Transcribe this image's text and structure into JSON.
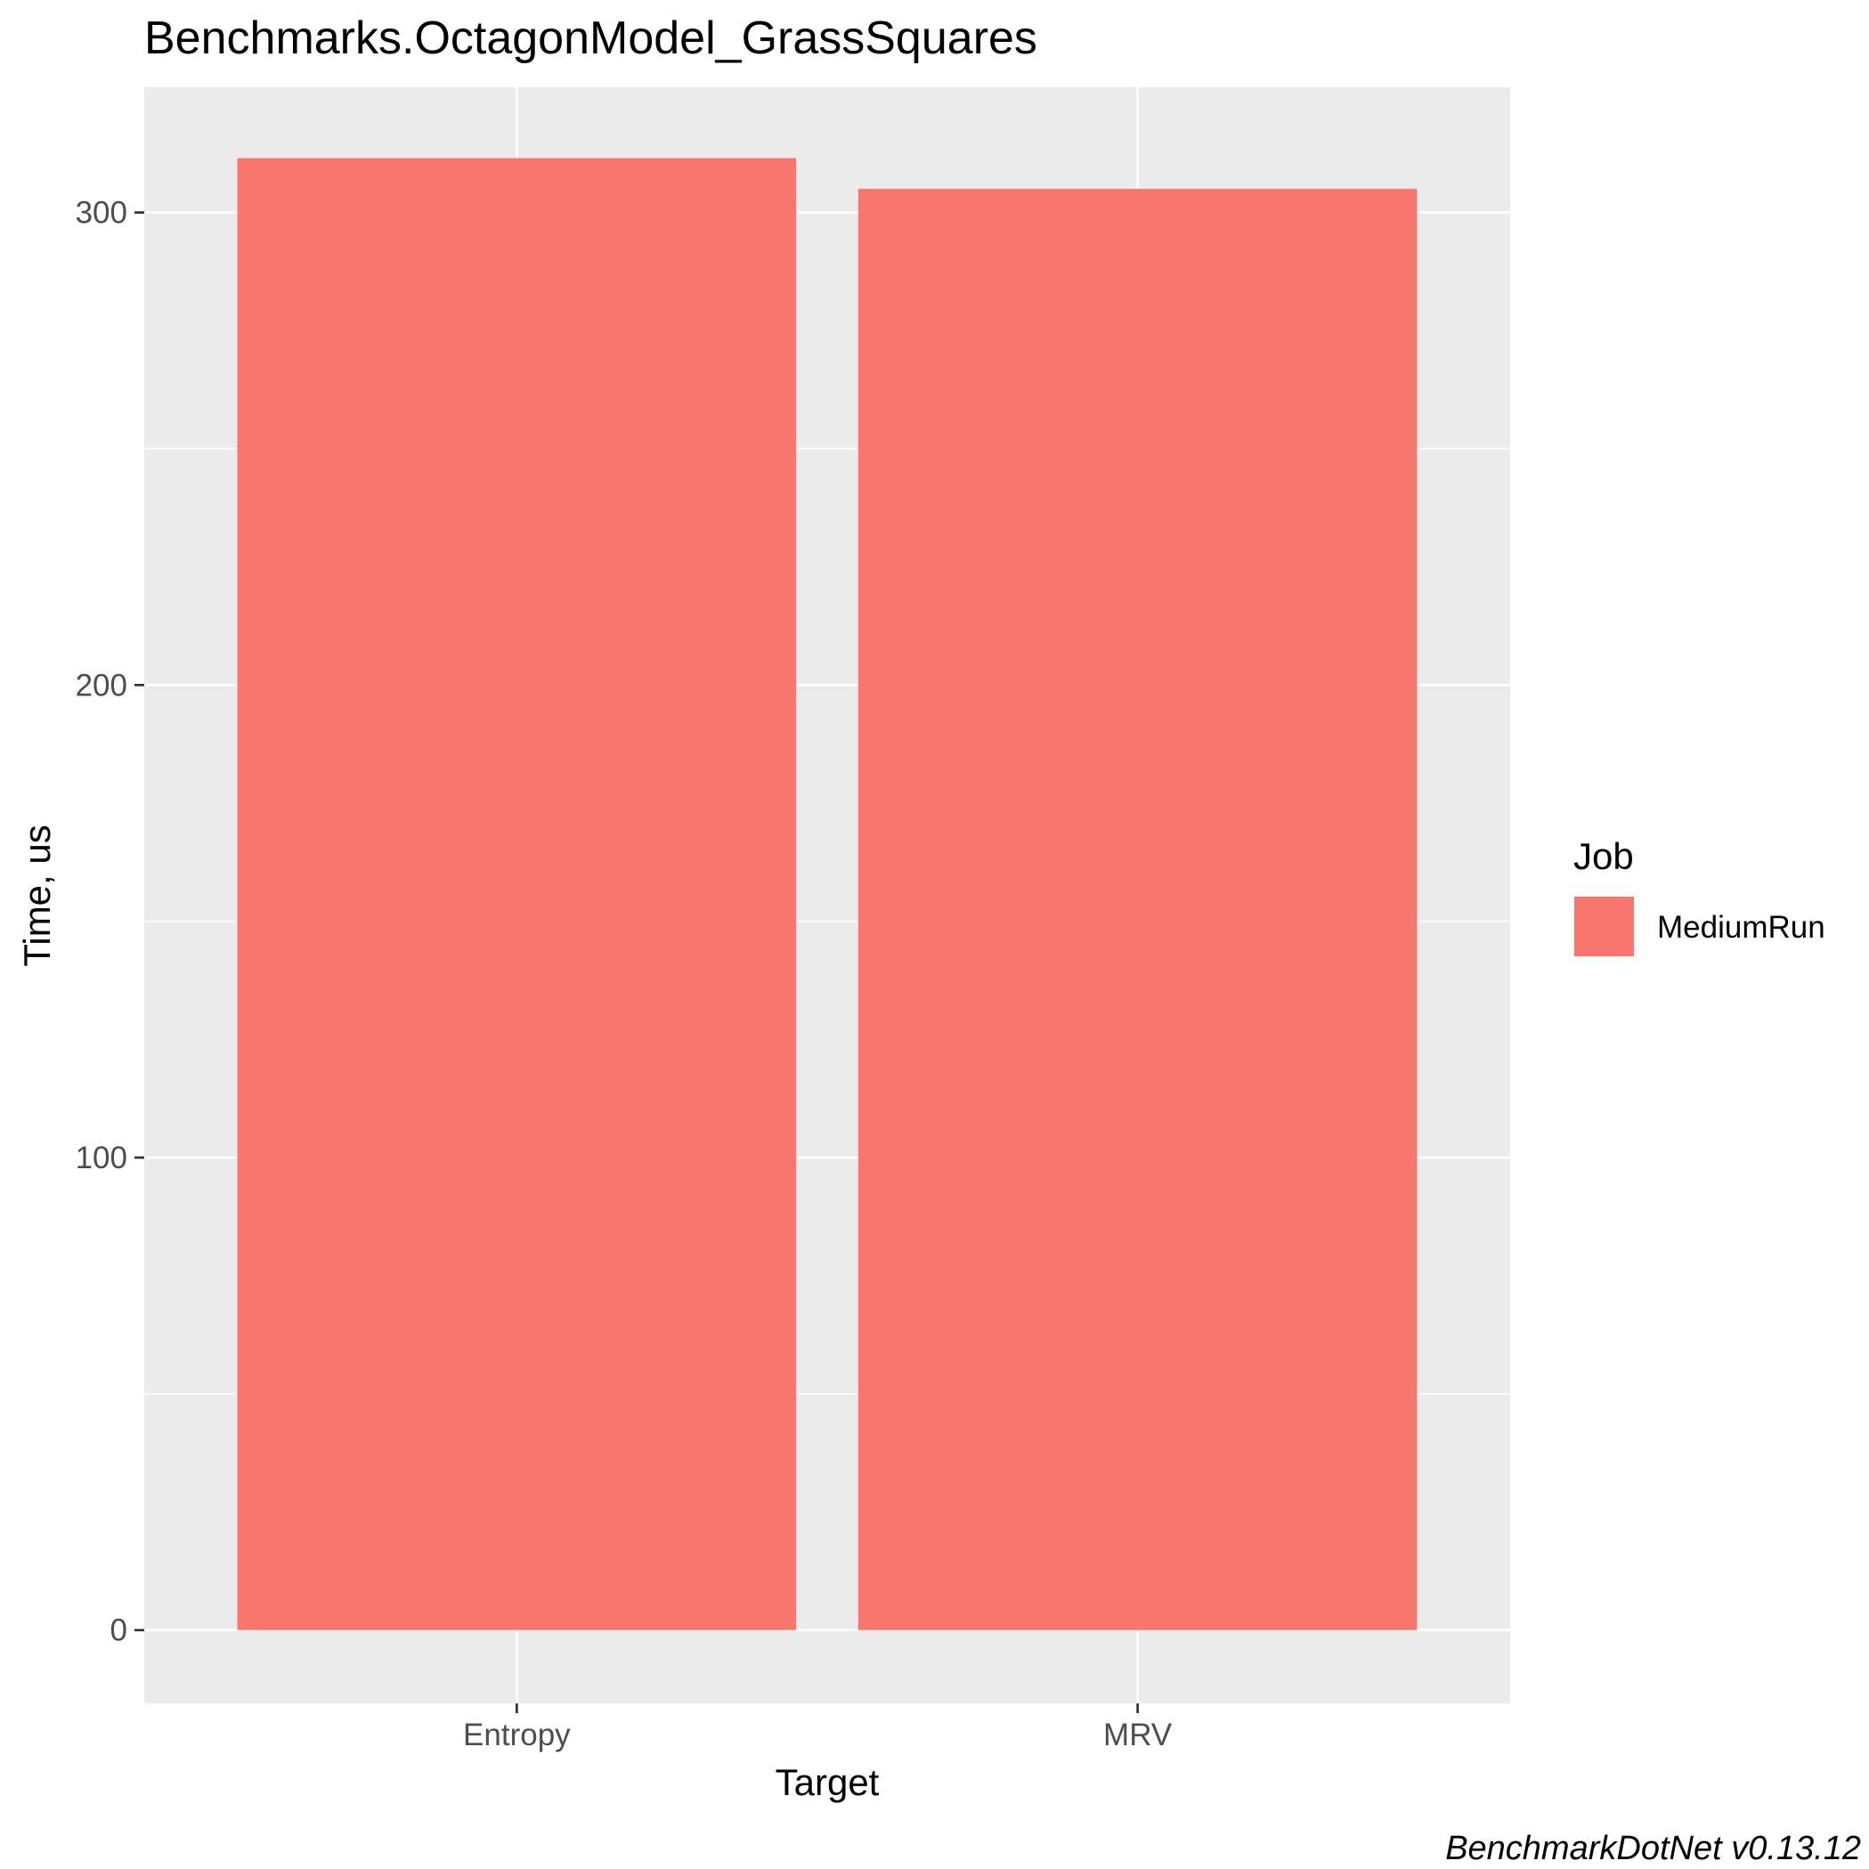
{
  "chart_data": {
    "type": "bar",
    "title": "Benchmarks.OctagonModel_GrassSquares",
    "xlabel": "Target",
    "ylabel": "Time, us",
    "categories": [
      "Entropy",
      "MRV"
    ],
    "series": [
      {
        "name": "MediumRun",
        "values": [
          311.5,
          305
        ]
      }
    ],
    "ylim": [
      -15.5,
      326.5
    ],
    "yticks": [
      0,
      100,
      200,
      300
    ],
    "ytick_labels": [
      "0",
      "100",
      "200",
      "300"
    ],
    "yminor": [
      50,
      150,
      250
    ],
    "grid": true,
    "legend": {
      "title": "Job",
      "position": "right",
      "entries": [
        "MediumRun"
      ]
    },
    "caption": "BenchmarkDotNet v0.13.12",
    "colors": {
      "bar": "#f8766d",
      "panel": "#ebebeb",
      "grid": "#ffffff",
      "tick": "#333333"
    }
  }
}
